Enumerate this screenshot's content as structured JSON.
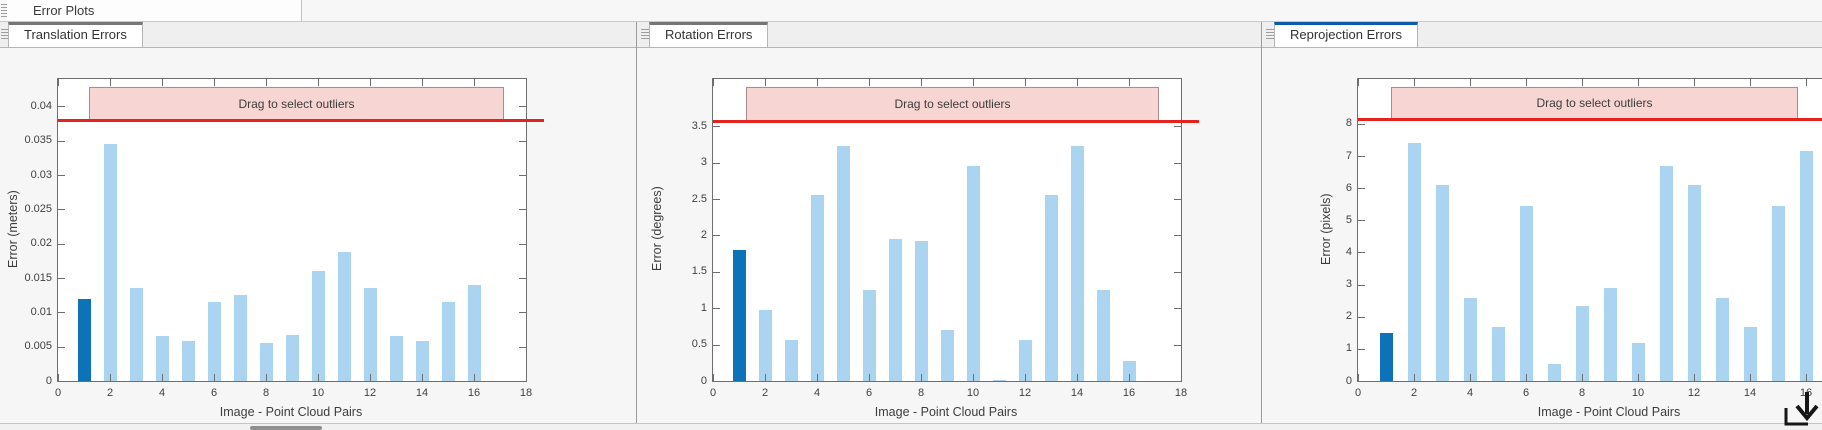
{
  "window": {
    "top_tab": "Error Plots"
  },
  "colors": {
    "bar": "#abd4f0",
    "bar_selected": "#0e72b9",
    "threshold_line": "#e3231c",
    "band_fill": "#f7d5d3",
    "band_border": "#ab8c8a",
    "active_tab_accent": "#0b5ba7",
    "inactive_tab_accent": "#767676"
  },
  "panels": [
    {
      "tab": "Translation Errors",
      "active": false
    },
    {
      "tab": "Rotation Errors",
      "active": false
    },
    {
      "tab": "Reprojection Errors",
      "active": true
    }
  ],
  "chart_data": [
    {
      "type": "bar",
      "title": "Translation Errors",
      "xlabel": "Image - Point Cloud Pairs",
      "ylabel": "Error (meters)",
      "overlay_label": "Drag to select outliers",
      "categories": [
        1,
        2,
        3,
        4,
        5,
        6,
        7,
        8,
        9,
        10,
        11,
        12,
        13,
        14,
        15,
        16
      ],
      "values": [
        0.012,
        0.0345,
        0.0135,
        0.0065,
        0.0058,
        0.0115,
        0.0125,
        0.0055,
        0.0067,
        0.016,
        0.0188,
        0.0135,
        0.0065,
        0.0058,
        0.0115,
        0.014
      ],
      "selected_bar_index": 0,
      "threshold": 0.038,
      "xlim": [
        0,
        18
      ],
      "ylim": [
        0,
        0.044
      ],
      "xticks": [
        0,
        2,
        4,
        6,
        8,
        10,
        12,
        14,
        16,
        18
      ],
      "yticks": [
        0,
        0.005,
        0.01,
        0.015,
        0.02,
        0.025,
        0.03,
        0.035,
        0.04
      ],
      "ytick_labels": [
        "0",
        "0.005",
        "0.01",
        "0.015",
        "0.02",
        "0.025",
        "0.03",
        "0.035",
        "0.04"
      ],
      "grid": false,
      "legend": null
    },
    {
      "type": "bar",
      "title": "Rotation Errors",
      "xlabel": "Image - Point Cloud Pairs",
      "ylabel": "Error (degrees)",
      "overlay_label": "Drag to select outliers",
      "categories": [
        1,
        2,
        3,
        4,
        5,
        6,
        7,
        8,
        9,
        10,
        11,
        12,
        13,
        14,
        15,
        16
      ],
      "values": [
        1.8,
        0.98,
        0.56,
        2.56,
        3.23,
        1.25,
        1.95,
        1.92,
        0.7,
        2.95,
        0.02,
        0.56,
        2.56,
        3.23,
        1.25,
        0.27
      ],
      "selected_bar_index": 0,
      "threshold": 3.57,
      "xlim": [
        0,
        18
      ],
      "ylim": [
        0,
        4.15
      ],
      "xticks": [
        0,
        2,
        4,
        6,
        8,
        10,
        12,
        14,
        16,
        18
      ],
      "yticks": [
        0,
        0.5,
        1,
        1.5,
        2,
        2.5,
        3,
        3.5
      ],
      "ytick_labels": [
        "0",
        "0.5",
        "1",
        "1.5",
        "2",
        "2.5",
        "3",
        "3.5"
      ],
      "grid": false,
      "legend": null
    },
    {
      "type": "bar",
      "title": "Reprojection Errors",
      "xlabel": "Image - Point Cloud Pairs",
      "ylabel": "Error (pixels)",
      "overlay_label": "Drag to select outliers",
      "categories": [
        1,
        2,
        3,
        4,
        5,
        6,
        7,
        8,
        9,
        10,
        11,
        12,
        13,
        14,
        15,
        16
      ],
      "values": [
        1.5,
        7.4,
        6.1,
        2.57,
        1.68,
        5.45,
        0.53,
        2.35,
        2.88,
        1.18,
        6.7,
        6.1,
        2.57,
        1.68,
        5.45,
        7.15
      ],
      "selected_bar_index": 0,
      "threshold": 8.15,
      "xlim": [
        0,
        18
      ],
      "ylim": [
        0,
        9.4
      ],
      "xticks": [
        0,
        2,
        4,
        6,
        8,
        10,
        12,
        14,
        16,
        18
      ],
      "yticks": [
        0,
        1,
        2,
        3,
        4,
        5,
        6,
        7,
        8
      ],
      "ytick_labels": [
        "0",
        "1",
        "2",
        "3",
        "4",
        "5",
        "6",
        "7",
        "8"
      ],
      "grid": false,
      "legend": null
    }
  ]
}
